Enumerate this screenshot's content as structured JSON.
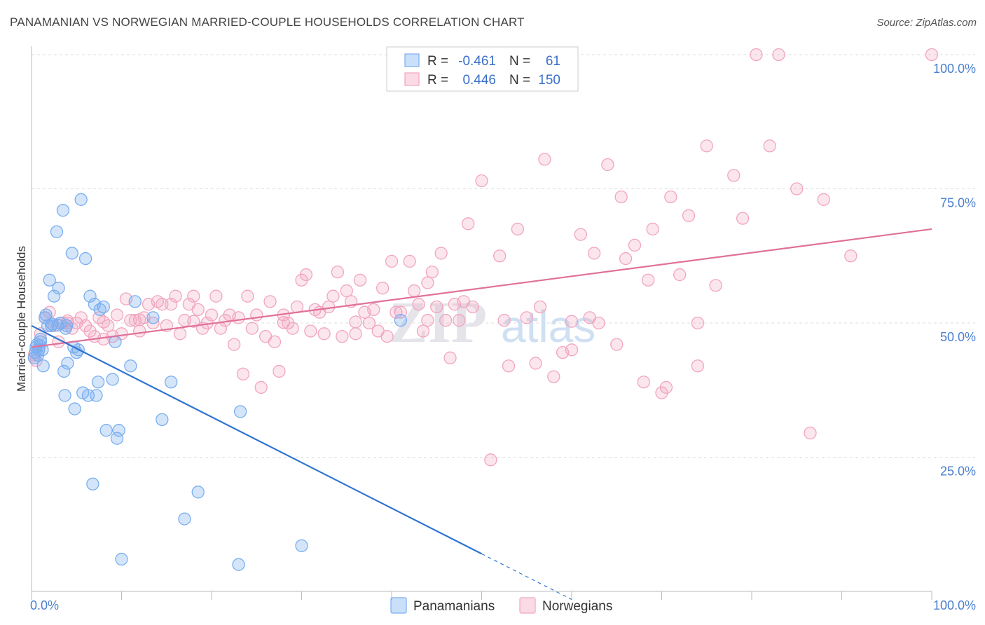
{
  "title": "PANAMANIAN VS NORWEGIAN MARRIED-COUPLE HOUSEHOLDS CORRELATION CHART",
  "source": "Source: ZipAtlas.com",
  "watermark": "ZIPatlas",
  "chart_data": {
    "type": "scatter",
    "title": "PANAMANIAN VS NORWEGIAN MARRIED-COUPLE HOUSEHOLDS CORRELATION CHART",
    "ylabel": "Married-couple Households",
    "xlabel": "",
    "xlim": [
      0,
      100
    ],
    "ylim": [
      0,
      100
    ],
    "x_tick_labels": [
      "0.0%",
      "100.0%"
    ],
    "y_ticks": [
      {
        "value": 100,
        "label": "100.0%"
      },
      {
        "value": 75,
        "label": "75.0%"
      },
      {
        "value": 50,
        "label": "50.0%"
      },
      {
        "value": 25,
        "label": "25.0%"
      }
    ],
    "legend": {
      "position": "top-center",
      "rows": [
        {
          "r_label": "R =",
          "r_value": "-0.461",
          "n_label": "N =",
          "n_value": "61"
        },
        {
          "r_label": "R =",
          "r_value": "0.446",
          "n_label": "N =",
          "n_value": "150"
        }
      ]
    },
    "series": [
      {
        "name": "Panamanians",
        "color": "#7aaef0",
        "line_color": "#2f74d0",
        "trend": {
          "x0": 0,
          "y0": 49.5,
          "x1": 50,
          "y1": 7,
          "dash_to_x": 60
        },
        "points": [
          [
            0.3,
            43.5
          ],
          [
            0.4,
            44.5
          ],
          [
            0.5,
            45.5
          ],
          [
            0.6,
            46
          ],
          [
            0.7,
            44
          ],
          [
            0.8,
            45
          ],
          [
            1.0,
            46.5
          ],
          [
            1.2,
            45
          ],
          [
            1.3,
            42
          ],
          [
            1.5,
            51
          ],
          [
            1.8,
            49.5
          ],
          [
            2.0,
            58
          ],
          [
            2.2,
            49.5
          ],
          [
            2.5,
            55
          ],
          [
            2.8,
            67
          ],
          [
            3.0,
            56.5
          ],
          [
            3.2,
            50
          ],
          [
            3.5,
            71
          ],
          [
            3.6,
            41
          ],
          [
            3.7,
            36.5
          ],
          [
            3.8,
            49
          ],
          [
            4.0,
            42.5
          ],
          [
            4.5,
            63
          ],
          [
            4.7,
            45.5
          ],
          [
            4.8,
            34
          ],
          [
            5.0,
            44.5
          ],
          [
            5.2,
            45
          ],
          [
            5.5,
            73
          ],
          [
            5.7,
            37
          ],
          [
            6.0,
            62
          ],
          [
            6.3,
            36.5
          ],
          [
            6.5,
            55
          ],
          [
            6.8,
            20
          ],
          [
            7.0,
            53.5
          ],
          [
            7.2,
            36.5
          ],
          [
            7.4,
            39
          ],
          [
            7.6,
            52.5
          ],
          [
            8.0,
            53
          ],
          [
            8.3,
            30
          ],
          [
            9.0,
            39.5
          ],
          [
            9.3,
            46.5
          ],
          [
            9.5,
            28.5
          ],
          [
            9.7,
            30
          ],
          [
            10.0,
            6
          ],
          [
            11.0,
            42
          ],
          [
            11.5,
            54
          ],
          [
            13.5,
            51
          ],
          [
            14.5,
            32
          ],
          [
            15.5,
            39
          ],
          [
            17.0,
            13.5
          ],
          [
            18.5,
            18.5
          ],
          [
            23.0,
            5
          ],
          [
            23.2,
            33.5
          ],
          [
            30.0,
            8.5
          ],
          [
            41.0,
            50.5
          ],
          [
            1.0,
            47
          ],
          [
            2.3,
            49.8
          ],
          [
            3.9,
            49.5
          ],
          [
            0.9,
            45.8
          ],
          [
            1.6,
            51.5
          ],
          [
            2.9,
            49.6
          ]
        ]
      },
      {
        "name": "Norwegians",
        "color": "#f2a5bf",
        "line_color": "#e0709a",
        "trend": {
          "x0": 0,
          "y0": 45.5,
          "x1": 100,
          "y1": 67.5
        },
        "points": [
          [
            0.3,
            44
          ],
          [
            0.5,
            43
          ],
          [
            1.0,
            48
          ],
          [
            1.5,
            51
          ],
          [
            2.0,
            52
          ],
          [
            2.5,
            49.5
          ],
          [
            3.0,
            46.5
          ],
          [
            3.5,
            50
          ],
          [
            4.0,
            50
          ],
          [
            4.5,
            49
          ],
          [
            5.0,
            50
          ],
          [
            5.5,
            51
          ],
          [
            6.0,
            49.5
          ],
          [
            6.5,
            48.5
          ],
          [
            7.0,
            47.5
          ],
          [
            7.5,
            51
          ],
          [
            8.0,
            47
          ],
          [
            8.5,
            49.5
          ],
          [
            9.0,
            47.5
          ],
          [
            9.5,
            51.5
          ],
          [
            10.0,
            48
          ],
          [
            10.5,
            54.5
          ],
          [
            11.0,
            50.5
          ],
          [
            11.5,
            50.5
          ],
          [
            12.0,
            48.5
          ],
          [
            12.5,
            51
          ],
          [
            13.0,
            53.5
          ],
          [
            13.5,
            50
          ],
          [
            14.0,
            54
          ],
          [
            14.5,
            53.5
          ],
          [
            15.0,
            49.5
          ],
          [
            15.5,
            53.5
          ],
          [
            16.0,
            55
          ],
          [
            16.5,
            48
          ],
          [
            17.0,
            50.5
          ],
          [
            17.5,
            53.5
          ],
          [
            18.0,
            55
          ],
          [
            18.5,
            52.5
          ],
          [
            19.0,
            49
          ],
          [
            19.5,
            50
          ],
          [
            20.0,
            51.5
          ],
          [
            20.5,
            55
          ],
          [
            21.0,
            49
          ],
          [
            21.5,
            50.5
          ],
          [
            22.0,
            51.5
          ],
          [
            22.5,
            46
          ],
          [
            23.0,
            51
          ],
          [
            23.5,
            40.5
          ],
          [
            24.0,
            55
          ],
          [
            24.5,
            49
          ],
          [
            25.0,
            51.5
          ],
          [
            25.5,
            38
          ],
          [
            26.0,
            47.5
          ],
          [
            26.5,
            54
          ],
          [
            27.0,
            46.5
          ],
          [
            27.5,
            41
          ],
          [
            28.0,
            51.5
          ],
          [
            28.5,
            50
          ],
          [
            29.0,
            49
          ],
          [
            29.5,
            53
          ],
          [
            30.0,
            58
          ],
          [
            30.5,
            59
          ],
          [
            31.0,
            48.5
          ],
          [
            31.5,
            52.5
          ],
          [
            32.0,
            52
          ],
          [
            32.5,
            48
          ],
          [
            33.0,
            53
          ],
          [
            33.5,
            55
          ],
          [
            34.0,
            59.5
          ],
          [
            34.5,
            47.5
          ],
          [
            35.0,
            56
          ],
          [
            35.5,
            54
          ],
          [
            36.0,
            48
          ],
          [
            36.5,
            58
          ],
          [
            37.0,
            52
          ],
          [
            37.5,
            50
          ],
          [
            38.0,
            52.5
          ],
          [
            38.5,
            48.5
          ],
          [
            39.0,
            56.5
          ],
          [
            39.5,
            47.5
          ],
          [
            40.0,
            61.5
          ],
          [
            40.5,
            52
          ],
          [
            41.0,
            52
          ],
          [
            42.0,
            61.5
          ],
          [
            42.5,
            56
          ],
          [
            43.0,
            53.5
          ],
          [
            43.5,
            48.5
          ],
          [
            44.0,
            57.5
          ],
          [
            44.5,
            59.5
          ],
          [
            45.0,
            53
          ],
          [
            45.5,
            63
          ],
          [
            46.0,
            50.5
          ],
          [
            46.5,
            43.5
          ],
          [
            47.0,
            53.5
          ],
          [
            47.5,
            50.5
          ],
          [
            48.0,
            54
          ],
          [
            48.5,
            68.5
          ],
          [
            49.0,
            53
          ],
          [
            50.0,
            76.5
          ],
          [
            51.0,
            24.5
          ],
          [
            52.0,
            62.5
          ],
          [
            52.5,
            50.5
          ],
          [
            53.0,
            42
          ],
          [
            54.0,
            67.5
          ],
          [
            55.0,
            51
          ],
          [
            56.0,
            42.5
          ],
          [
            56.5,
            53
          ],
          [
            57.0,
            80.5
          ],
          [
            58.0,
            40
          ],
          [
            59.0,
            44.5
          ],
          [
            60.0,
            45
          ],
          [
            61.0,
            66.5
          ],
          [
            62.0,
            51
          ],
          [
            62.5,
            63
          ],
          [
            63.0,
            50
          ],
          [
            64.0,
            79.5
          ],
          [
            65.0,
            46
          ],
          [
            65.5,
            73.5
          ],
          [
            66.0,
            62
          ],
          [
            67.0,
            64.5
          ],
          [
            68.0,
            39
          ],
          [
            68.5,
            58
          ],
          [
            69.0,
            67.5
          ],
          [
            70.0,
            37
          ],
          [
            70.5,
            38
          ],
          [
            71.0,
            73.5
          ],
          [
            72.0,
            59
          ],
          [
            73.0,
            70
          ],
          [
            74.0,
            42
          ],
          [
            75.0,
            83
          ],
          [
            76.0,
            57
          ],
          [
            78.0,
            77.5
          ],
          [
            79.0,
            69.5
          ],
          [
            80.5,
            100
          ],
          [
            82.0,
            83
          ],
          [
            83.0,
            100
          ],
          [
            85.0,
            75
          ],
          [
            86.5,
            29.5
          ],
          [
            88.0,
            73
          ],
          [
            91.0,
            62.5
          ],
          [
            100.0,
            100
          ],
          [
            74.0,
            50
          ],
          [
            36.0,
            50.2
          ],
          [
            44.0,
            50.5
          ],
          [
            60.0,
            50.3
          ],
          [
            28.0,
            50.1
          ],
          [
            18.0,
            50.3
          ],
          [
            8.0,
            50.2
          ],
          [
            12.0,
            50.6
          ],
          [
            4.0,
            50.4
          ]
        ]
      }
    ]
  },
  "bottom_legend": [
    {
      "label": "Panamanians"
    },
    {
      "label": "Norwegians"
    }
  ]
}
